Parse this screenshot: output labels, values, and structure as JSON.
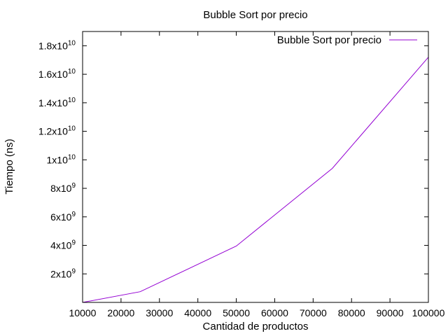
{
  "chart_data": {
    "type": "line",
    "title": "Bubble Sort por precio",
    "xlabel": "Cantidad de productos",
    "ylabel": "Tiempo (ns)",
    "xlim": [
      10000,
      100000
    ],
    "ylim": [
      0,
      19000000000.0
    ],
    "x_ticks": [
      10000,
      20000,
      30000,
      40000,
      50000,
      60000,
      70000,
      80000,
      90000,
      100000
    ],
    "y_ticks": [
      {
        "value": 2000000000.0,
        "mantissa": "2x10",
        "exp": "9"
      },
      {
        "value": 4000000000.0,
        "mantissa": "4x10",
        "exp": "9"
      },
      {
        "value": 6000000000.0,
        "mantissa": "6x10",
        "exp": "9"
      },
      {
        "value": 8000000000.0,
        "mantissa": "8x10",
        "exp": "9"
      },
      {
        "value": 10000000000.0,
        "mantissa": "1x10",
        "exp": "10"
      },
      {
        "value": 12000000000.0,
        "mantissa": "1.2x10",
        "exp": "10"
      },
      {
        "value": 14000000000.0,
        "mantissa": "1.4x10",
        "exp": "10"
      },
      {
        "value": 16000000000.0,
        "mantissa": "1.6x10",
        "exp": "10"
      },
      {
        "value": 18000000000.0,
        "mantissa": "1.8x10",
        "exp": "10"
      }
    ],
    "legend_position": "top-right",
    "grid": false,
    "series": [
      {
        "name": "Bubble Sort por precio",
        "color": "#9400d3",
        "x": [
          10000,
          25000,
          50000,
          75000,
          100000
        ],
        "y": [
          0,
          750000000,
          3950000000,
          9400000000,
          17200000000
        ]
      }
    ]
  }
}
